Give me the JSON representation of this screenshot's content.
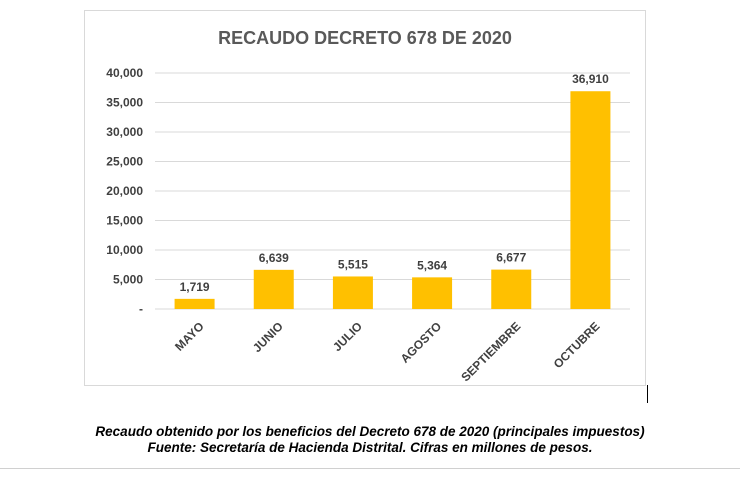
{
  "chart_data": {
    "type": "bar",
    "title": "RECAUDO DECRETO 678 DE 2020",
    "categories": [
      "MAYO",
      "JUNIO",
      "JULIO",
      "AGOSTO",
      "SEPTIEMBRE",
      "OCTUBRE"
    ],
    "values": [
      1719,
      6639,
      5515,
      5364,
      6677,
      36910
    ],
    "data_labels": [
      "1,719",
      "6,639",
      "5,515",
      "5,364",
      "6,677",
      "36,910"
    ],
    "yticks": [
      "-",
      "5,000",
      "10,000",
      "15,000",
      "20,000",
      "25,000",
      "30,000",
      "35,000",
      "40,000"
    ],
    "ylim": [
      0,
      40000
    ],
    "ystep": 5000,
    "grid": true,
    "legend": "none",
    "bar_color": "#FFC000",
    "grid_color": "#d9d9d9",
    "xlabel": "",
    "ylabel": ""
  },
  "caption": {
    "line1": "Recaudo obtenido por los beneficios del Decreto 678 de 2020 (principales impuestos)",
    "line2": "Fuente: Secretaría de Hacienda Distrital. Cifras en millones de pesos."
  }
}
